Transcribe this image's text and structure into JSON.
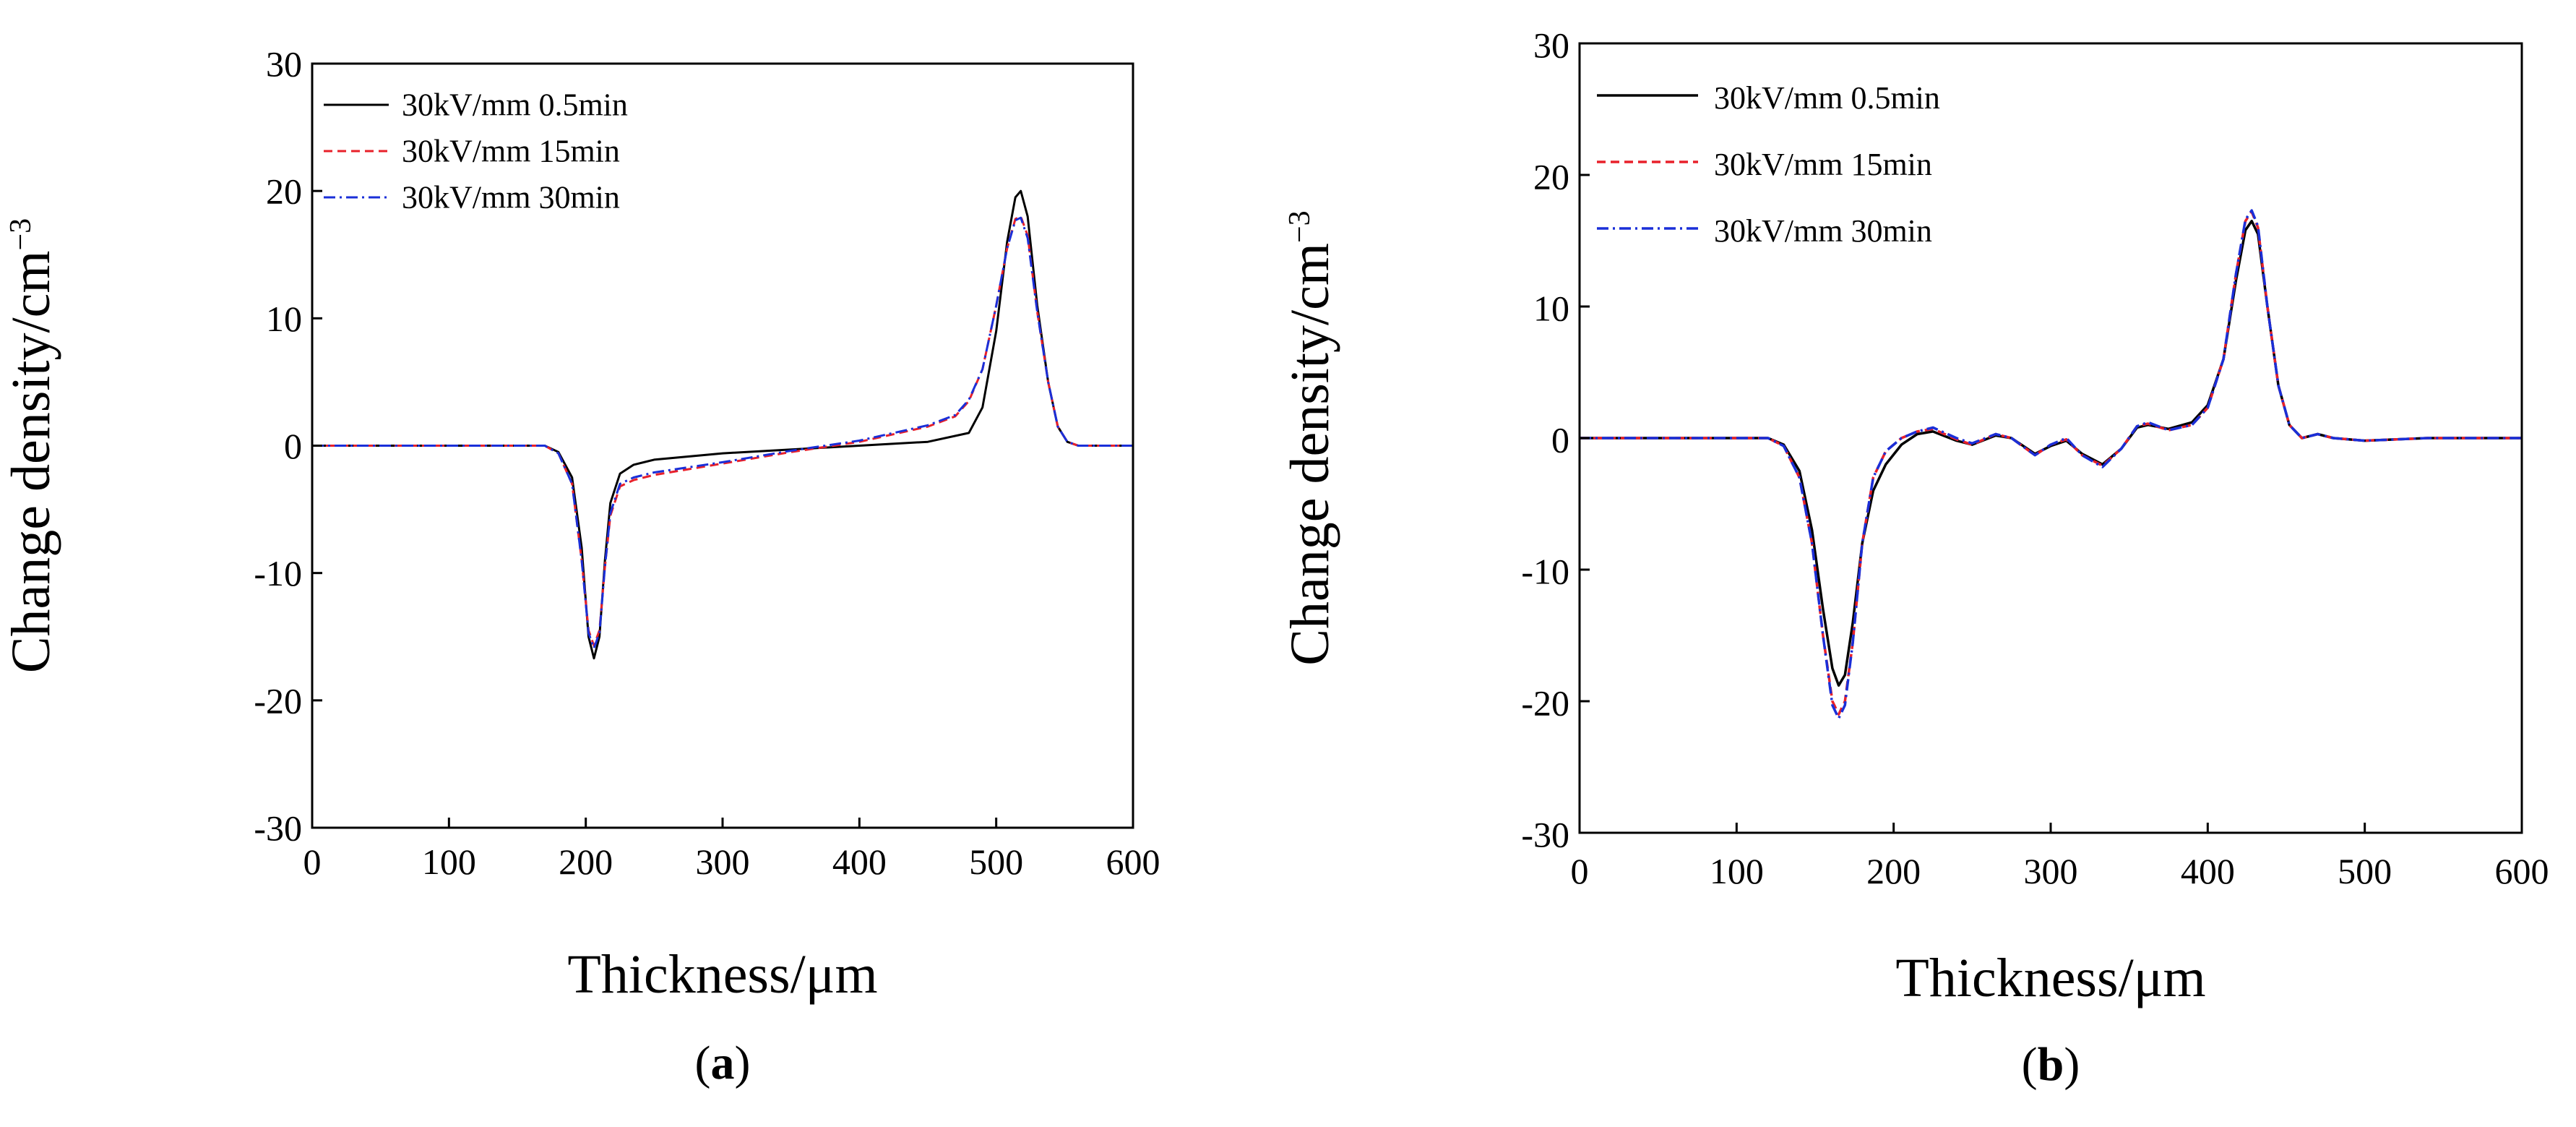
{
  "colors": {
    "series_0": "#000000",
    "series_1": "#e8202a",
    "series_2": "#1a2fd8"
  },
  "chart_data": [
    {
      "type": "line",
      "panel_label_prefix": "(",
      "panel_label_letter": "a",
      "panel_label_suffix": ")",
      "xlabel": "Thickness/μm",
      "ylabel_main": "Change density/cm",
      "ylabel_sup": "−3",
      "xlim": [
        0,
        600
      ],
      "ylim": [
        -30,
        30
      ],
      "xticks": [
        0,
        100,
        200,
        300,
        400,
        500,
        600
      ],
      "xtick_labels": [
        "0",
        "100",
        "200",
        "300",
        "400",
        "500",
        "600"
      ],
      "yticks": [
        -30,
        -20,
        -10,
        0,
        10,
        20,
        30
      ],
      "ytick_labels": [
        "-30",
        "-20",
        "-10",
        "0",
        "10",
        "20",
        "30"
      ],
      "grid": false,
      "legend_position": "top-left",
      "series": [
        {
          "name": "30kV/mm 0.5min",
          "style": "solid",
          "points": [
            [
              0,
              0
            ],
            [
              100,
              0
            ],
            [
              170,
              0
            ],
            [
              180,
              -0.5
            ],
            [
              190,
              -2.5
            ],
            [
              197,
              -8
            ],
            [
              202,
              -15
            ],
            [
              206,
              -16.7
            ],
            [
              210,
              -15
            ],
            [
              214,
              -9
            ],
            [
              218,
              -4.5
            ],
            [
              225,
              -2.2
            ],
            [
              235,
              -1.5
            ],
            [
              250,
              -1.1
            ],
            [
              300,
              -0.6
            ],
            [
              400,
              0
            ],
            [
              450,
              0.3
            ],
            [
              480,
              1
            ],
            [
              490,
              3
            ],
            [
              500,
              9
            ],
            [
              508,
              16
            ],
            [
              514,
              19.5
            ],
            [
              518,
              20
            ],
            [
              523,
              18
            ],
            [
              530,
              11
            ],
            [
              538,
              5
            ],
            [
              545,
              1.5
            ],
            [
              552,
              0.3
            ],
            [
              560,
              0
            ],
            [
              600,
              0
            ]
          ]
        },
        {
          "name": "30kV/mm 15min",
          "style": "dashed",
          "points": [
            [
              0,
              0
            ],
            [
              100,
              0
            ],
            [
              170,
              0
            ],
            [
              180,
              -0.6
            ],
            [
              190,
              -3
            ],
            [
              197,
              -9
            ],
            [
              202,
              -14.5
            ],
            [
              206,
              -15.7
            ],
            [
              210,
              -14.5
            ],
            [
              214,
              -9.5
            ],
            [
              218,
              -5.5
            ],
            [
              225,
              -3.2
            ],
            [
              235,
              -2.7
            ],
            [
              250,
              -2.3
            ],
            [
              300,
              -1.4
            ],
            [
              350,
              -0.5
            ],
            [
              400,
              0.3
            ],
            [
              450,
              1.5
            ],
            [
              470,
              2.3
            ],
            [
              480,
              3.5
            ],
            [
              490,
              6
            ],
            [
              500,
              11
            ],
            [
              508,
              15.5
            ],
            [
              514,
              17.8
            ],
            [
              518,
              18
            ],
            [
              523,
              16.5
            ],
            [
              530,
              10.5
            ],
            [
              538,
              5
            ],
            [
              545,
              1.5
            ],
            [
              552,
              0.3
            ],
            [
              560,
              0
            ],
            [
              600,
              0
            ]
          ]
        },
        {
          "name": "30kV/mm 30min",
          "style": "dashdot",
          "points": [
            [
              0,
              0
            ],
            [
              100,
              0
            ],
            [
              170,
              0
            ],
            [
              180,
              -0.6
            ],
            [
              190,
              -3
            ],
            [
              197,
              -9
            ],
            [
              202,
              -14.7
            ],
            [
              206,
              -15.9
            ],
            [
              210,
              -14.7
            ],
            [
              214,
              -9.5
            ],
            [
              218,
              -5.3
            ],
            [
              225,
              -3
            ],
            [
              235,
              -2.5
            ],
            [
              250,
              -2.1
            ],
            [
              300,
              -1.3
            ],
            [
              350,
              -0.4
            ],
            [
              400,
              0.4
            ],
            [
              450,
              1.6
            ],
            [
              470,
              2.4
            ],
            [
              480,
              3.6
            ],
            [
              490,
              6
            ],
            [
              500,
              11
            ],
            [
              508,
              15.5
            ],
            [
              514,
              17.7
            ],
            [
              518,
              17.9
            ],
            [
              523,
              16.3
            ],
            [
              530,
              10.5
            ],
            [
              538,
              5
            ],
            [
              545,
              1.5
            ],
            [
              552,
              0.3
            ],
            [
              560,
              0
            ],
            [
              600,
              0
            ]
          ]
        }
      ]
    },
    {
      "type": "line",
      "panel_label_prefix": "(",
      "panel_label_letter": "b",
      "panel_label_suffix": ")",
      "xlabel": "Thickness/μm",
      "ylabel_main": "Change density/cm",
      "ylabel_sup": "−3",
      "xlim": [
        0,
        600
      ],
      "ylim": [
        -30,
        30
      ],
      "xticks": [
        0,
        100,
        200,
        300,
        400,
        500,
        600
      ],
      "xtick_labels": [
        "0",
        "100",
        "200",
        "300",
        "400",
        "500",
        "600"
      ],
      "yticks": [
        -30,
        -20,
        -10,
        0,
        10,
        20,
        30
      ],
      "ytick_labels": [
        "-30",
        "-20",
        "-10",
        "0",
        "10",
        "20",
        "30"
      ],
      "grid": false,
      "legend_position": "top-left",
      "series": [
        {
          "name": "30kV/mm 0.5min",
          "style": "solid",
          "points": [
            [
              0,
              0
            ],
            [
              120,
              0
            ],
            [
              130,
              -0.5
            ],
            [
              140,
              -2.5
            ],
            [
              148,
              -7
            ],
            [
              155,
              -13
            ],
            [
              161,
              -17.5
            ],
            [
              165,
              -18.8
            ],
            [
              169,
              -18
            ],
            [
              174,
              -14
            ],
            [
              180,
              -8
            ],
            [
              187,
              -4
            ],
            [
              195,
              -2
            ],
            [
              205,
              -0.5
            ],
            [
              215,
              0.3
            ],
            [
              225,
              0.5
            ],
            [
              240,
              -0.2
            ],
            [
              250,
              -0.5
            ],
            [
              265,
              0.2
            ],
            [
              275,
              0
            ],
            [
              290,
              -1.2
            ],
            [
              300,
              -0.6
            ],
            [
              310,
              -0.2
            ],
            [
              320,
              -1.2
            ],
            [
              333,
              -2
            ],
            [
              345,
              -0.8
            ],
            [
              355,
              0.8
            ],
            [
              362,
              1
            ],
            [
              375,
              0.7
            ],
            [
              390,
              1.2
            ],
            [
              400,
              2.5
            ],
            [
              410,
              6
            ],
            [
              418,
              12
            ],
            [
              424,
              15.8
            ],
            [
              428,
              16.5
            ],
            [
              432,
              15.5
            ],
            [
              438,
              10
            ],
            [
              445,
              4
            ],
            [
              452,
              1
            ],
            [
              460,
              0
            ],
            [
              470,
              0.3
            ],
            [
              480,
              0
            ],
            [
              500,
              -0.2
            ],
            [
              540,
              0
            ],
            [
              600,
              0
            ]
          ]
        },
        {
          "name": "30kV/mm 15min",
          "style": "dashed",
          "points": [
            [
              0,
              0
            ],
            [
              120,
              0
            ],
            [
              130,
              -0.6
            ],
            [
              140,
              -3
            ],
            [
              148,
              -8
            ],
            [
              155,
              -15
            ],
            [
              161,
              -20
            ],
            [
              165,
              -21
            ],
            [
              169,
              -20
            ],
            [
              174,
              -15.5
            ],
            [
              180,
              -8
            ],
            [
              187,
              -3
            ],
            [
              195,
              -1
            ],
            [
              205,
              0
            ],
            [
              215,
              0.5
            ],
            [
              225,
              0.7
            ],
            [
              240,
              -0.1
            ],
            [
              250,
              -0.5
            ],
            [
              265,
              0.3
            ],
            [
              275,
              0
            ],
            [
              290,
              -1.3
            ],
            [
              300,
              -0.5
            ],
            [
              310,
              -0.1
            ],
            [
              320,
              -1.3
            ],
            [
              333,
              -2.1
            ],
            [
              345,
              -0.8
            ],
            [
              355,
              0.9
            ],
            [
              362,
              1.1
            ],
            [
              375,
              0.6
            ],
            [
              390,
              1
            ],
            [
              400,
              2.3
            ],
            [
              410,
              6
            ],
            [
              418,
              12.5
            ],
            [
              424,
              16.5
            ],
            [
              428,
              17.2
            ],
            [
              432,
              16
            ],
            [
              438,
              10
            ],
            [
              445,
              4
            ],
            [
              452,
              1
            ],
            [
              460,
              0
            ],
            [
              470,
              0.3
            ],
            [
              480,
              0
            ],
            [
              500,
              -0.2
            ],
            [
              540,
              0
            ],
            [
              600,
              0
            ]
          ]
        },
        {
          "name": "30kV/mm 30min",
          "style": "dashdot",
          "points": [
            [
              0,
              0
            ],
            [
              120,
              0
            ],
            [
              130,
              -0.6
            ],
            [
              140,
              -3
            ],
            [
              148,
              -8
            ],
            [
              155,
              -15
            ],
            [
              161,
              -20.3
            ],
            [
              165,
              -21.3
            ],
            [
              169,
              -20.3
            ],
            [
              174,
              -15.5
            ],
            [
              180,
              -8
            ],
            [
              187,
              -3
            ],
            [
              195,
              -1
            ],
            [
              205,
              0
            ],
            [
              215,
              0.5
            ],
            [
              225,
              0.8
            ],
            [
              240,
              0
            ],
            [
              250,
              -0.4
            ],
            [
              265,
              0.3
            ],
            [
              275,
              0
            ],
            [
              290,
              -1.3
            ],
            [
              300,
              -0.5
            ],
            [
              310,
              0
            ],
            [
              320,
              -1.3
            ],
            [
              333,
              -2.2
            ],
            [
              345,
              -0.8
            ],
            [
              355,
              0.9
            ],
            [
              362,
              1.2
            ],
            [
              375,
              0.6
            ],
            [
              390,
              1
            ],
            [
              400,
              2.3
            ],
            [
              410,
              6
            ],
            [
              418,
              12.5
            ],
            [
              424,
              16.6
            ],
            [
              428,
              17.3
            ],
            [
              432,
              16.1
            ],
            [
              438,
              10
            ],
            [
              445,
              4
            ],
            [
              452,
              1
            ],
            [
              460,
              0
            ],
            [
              470,
              0.3
            ],
            [
              480,
              0
            ],
            [
              500,
              -0.2
            ],
            [
              540,
              0
            ],
            [
              600,
              0
            ]
          ]
        }
      ]
    }
  ]
}
